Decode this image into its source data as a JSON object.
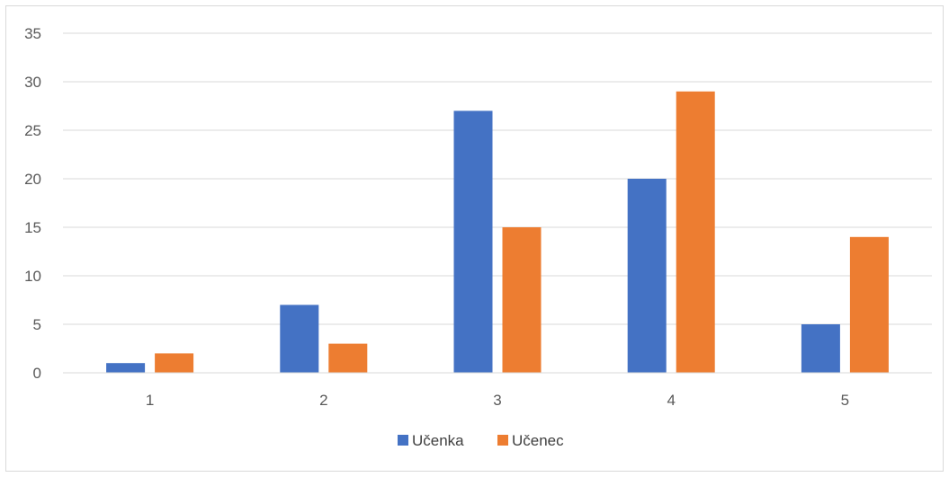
{
  "chart_data": {
    "type": "bar",
    "categories": [
      "1",
      "2",
      "3",
      "4",
      "5"
    ],
    "series": [
      {
        "name": "Učenka",
        "values": [
          1,
          7,
          27,
          20,
          5
        ],
        "color": "#4472C4"
      },
      {
        "name": "Učenec",
        "values": [
          2,
          3,
          15,
          29,
          14
        ],
        "color": "#ED7D31"
      }
    ],
    "ylim": [
      0,
      35
    ],
    "yticks": [
      "0",
      "5",
      "10",
      "15",
      "20",
      "25",
      "30",
      "35"
    ],
    "grid": true,
    "legend_position": "bottom",
    "title": "",
    "xlabel": "",
    "ylabel": ""
  }
}
